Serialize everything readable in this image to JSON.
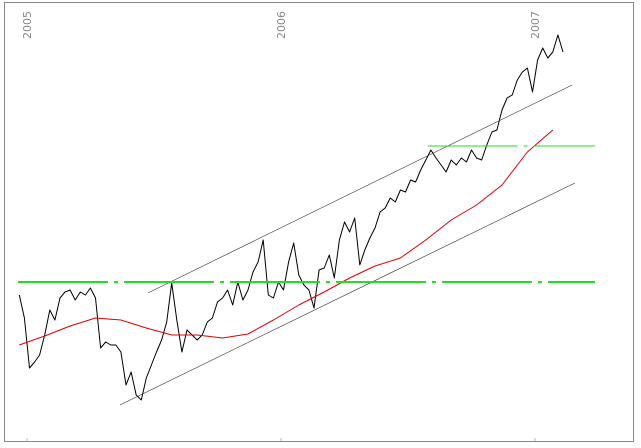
{
  "chart_data": {
    "type": "line",
    "xlim": [
      2004.894,
      2007.417
    ],
    "xticks": [
      2005,
      2006,
      2007
    ],
    "ylim": [
      0,
      440
    ],
    "grid": false,
    "series": [
      {
        "color": "#000000",
        "width": 1,
        "x": [
          2004.97,
          2004.99,
          2005.01,
          2005.03,
          2005.05,
          2005.07,
          2005.09,
          2005.11,
          2005.13,
          2005.15,
          2005.17,
          2005.19,
          2005.21,
          2005.23,
          2005.25,
          2005.27,
          2005.29,
          2005.31,
          2005.33,
          2005.35,
          2005.37,
          2005.39,
          2005.41,
          2005.43,
          2005.45,
          2005.47,
          2005.49,
          2005.51,
          2005.53,
          2005.55,
          2005.57,
          2005.59,
          2005.61,
          2005.63,
          2005.65,
          2005.67,
          2005.69,
          2005.71,
          2005.73,
          2005.75,
          2005.77,
          2005.79,
          2005.81,
          2005.83,
          2005.85,
          2005.87,
          2005.89,
          2005.91,
          2005.93,
          2005.95,
          2005.97,
          2005.99,
          2006.01,
          2006.03,
          2006.05,
          2006.07,
          2006.09,
          2006.11,
          2006.13,
          2006.15,
          2006.17,
          2006.19,
          2006.21,
          2006.23,
          2006.25,
          2006.27,
          2006.29,
          2006.31,
          2006.33,
          2006.35,
          2006.37,
          2006.39,
          2006.41,
          2006.43,
          2006.45,
          2006.47,
          2006.49,
          2006.51,
          2006.53,
          2006.55,
          2006.57,
          2006.59,
          2006.61,
          2006.63,
          2006.65,
          2006.67,
          2006.69,
          2006.71,
          2006.73,
          2006.75,
          2006.77,
          2006.79,
          2006.81,
          2006.83,
          2006.85,
          2006.87,
          2006.89,
          2006.91,
          2006.93,
          2006.95,
          2006.97,
          2006.99,
          2007.01,
          2007.03,
          2007.05,
          2007.07,
          2007.09,
          2007.11
        ],
        "values": [
          145,
          122,
          72,
          78,
          85,
          105,
          130,
          120,
          142,
          148,
          150,
          140,
          148,
          145,
          152,
          142,
          92,
          98,
          95,
          95,
          88,
          55,
          68,
          45,
          40,
          62,
          75,
          88,
          100,
          118,
          157,
          120,
          88,
          110,
          105,
          100,
          105,
          118,
          122,
          138,
          142,
          150,
          135,
          158,
          140,
          150,
          168,
          178,
          200,
          145,
          142,
          158,
          150,
          178,
          197,
          165,
          155,
          150,
          132,
          170,
          172,
          185,
          162,
          200,
          218,
          208,
          222,
          175,
          190,
          202,
          212,
          228,
          232,
          242,
          238,
          250,
          248,
          260,
          258,
          270,
          280,
          290,
          282,
          275,
          268,
          280,
          275,
          282,
          278,
          290,
          282,
          280,
          295,
          308,
          310,
          330,
          342,
          345,
          360,
          368,
          372,
          348,
          380,
          392,
          382,
          388,
          405,
          388
        ]
      },
      {
        "color": "#dd0000",
        "width": 1,
        "x": [
          2004.97,
          2005.07,
          2005.17,
          2005.27,
          2005.37,
          2005.47,
          2005.57,
          2005.67,
          2005.77,
          2005.87,
          2005.97,
          2006.07,
          2006.17,
          2006.27,
          2006.37,
          2006.47,
          2006.57,
          2006.67,
          2006.77,
          2006.87,
          2006.97,
          2007.07
        ],
        "values": [
          95,
          104,
          114,
          122,
          120,
          112,
          105,
          105,
          102,
          106,
          120,
          135,
          148,
          162,
          174,
          182,
          200,
          220,
          235,
          255,
          288,
          310
        ]
      },
      {
        "color": "#333333",
        "width": 0.6,
        "x": [
          2005.476,
          2007.146
        ],
        "values": [
          147,
          355
        ]
      },
      {
        "color": "#333333",
        "width": 0.6,
        "x": [
          2005.366,
          2007.157
        ],
        "values": [
          35,
          257
        ]
      },
      {
        "color": "#22dd22",
        "width": 2,
        "dash": true,
        "x": [
          2004.965,
          2007.236
        ],
        "values": [
          158,
          158
        ]
      },
      {
        "color": "#22dd22",
        "width": 1,
        "dash": true,
        "x": [
          2006.577,
          2007.236
        ],
        "values": [
          294,
          294
        ]
      }
    ]
  }
}
